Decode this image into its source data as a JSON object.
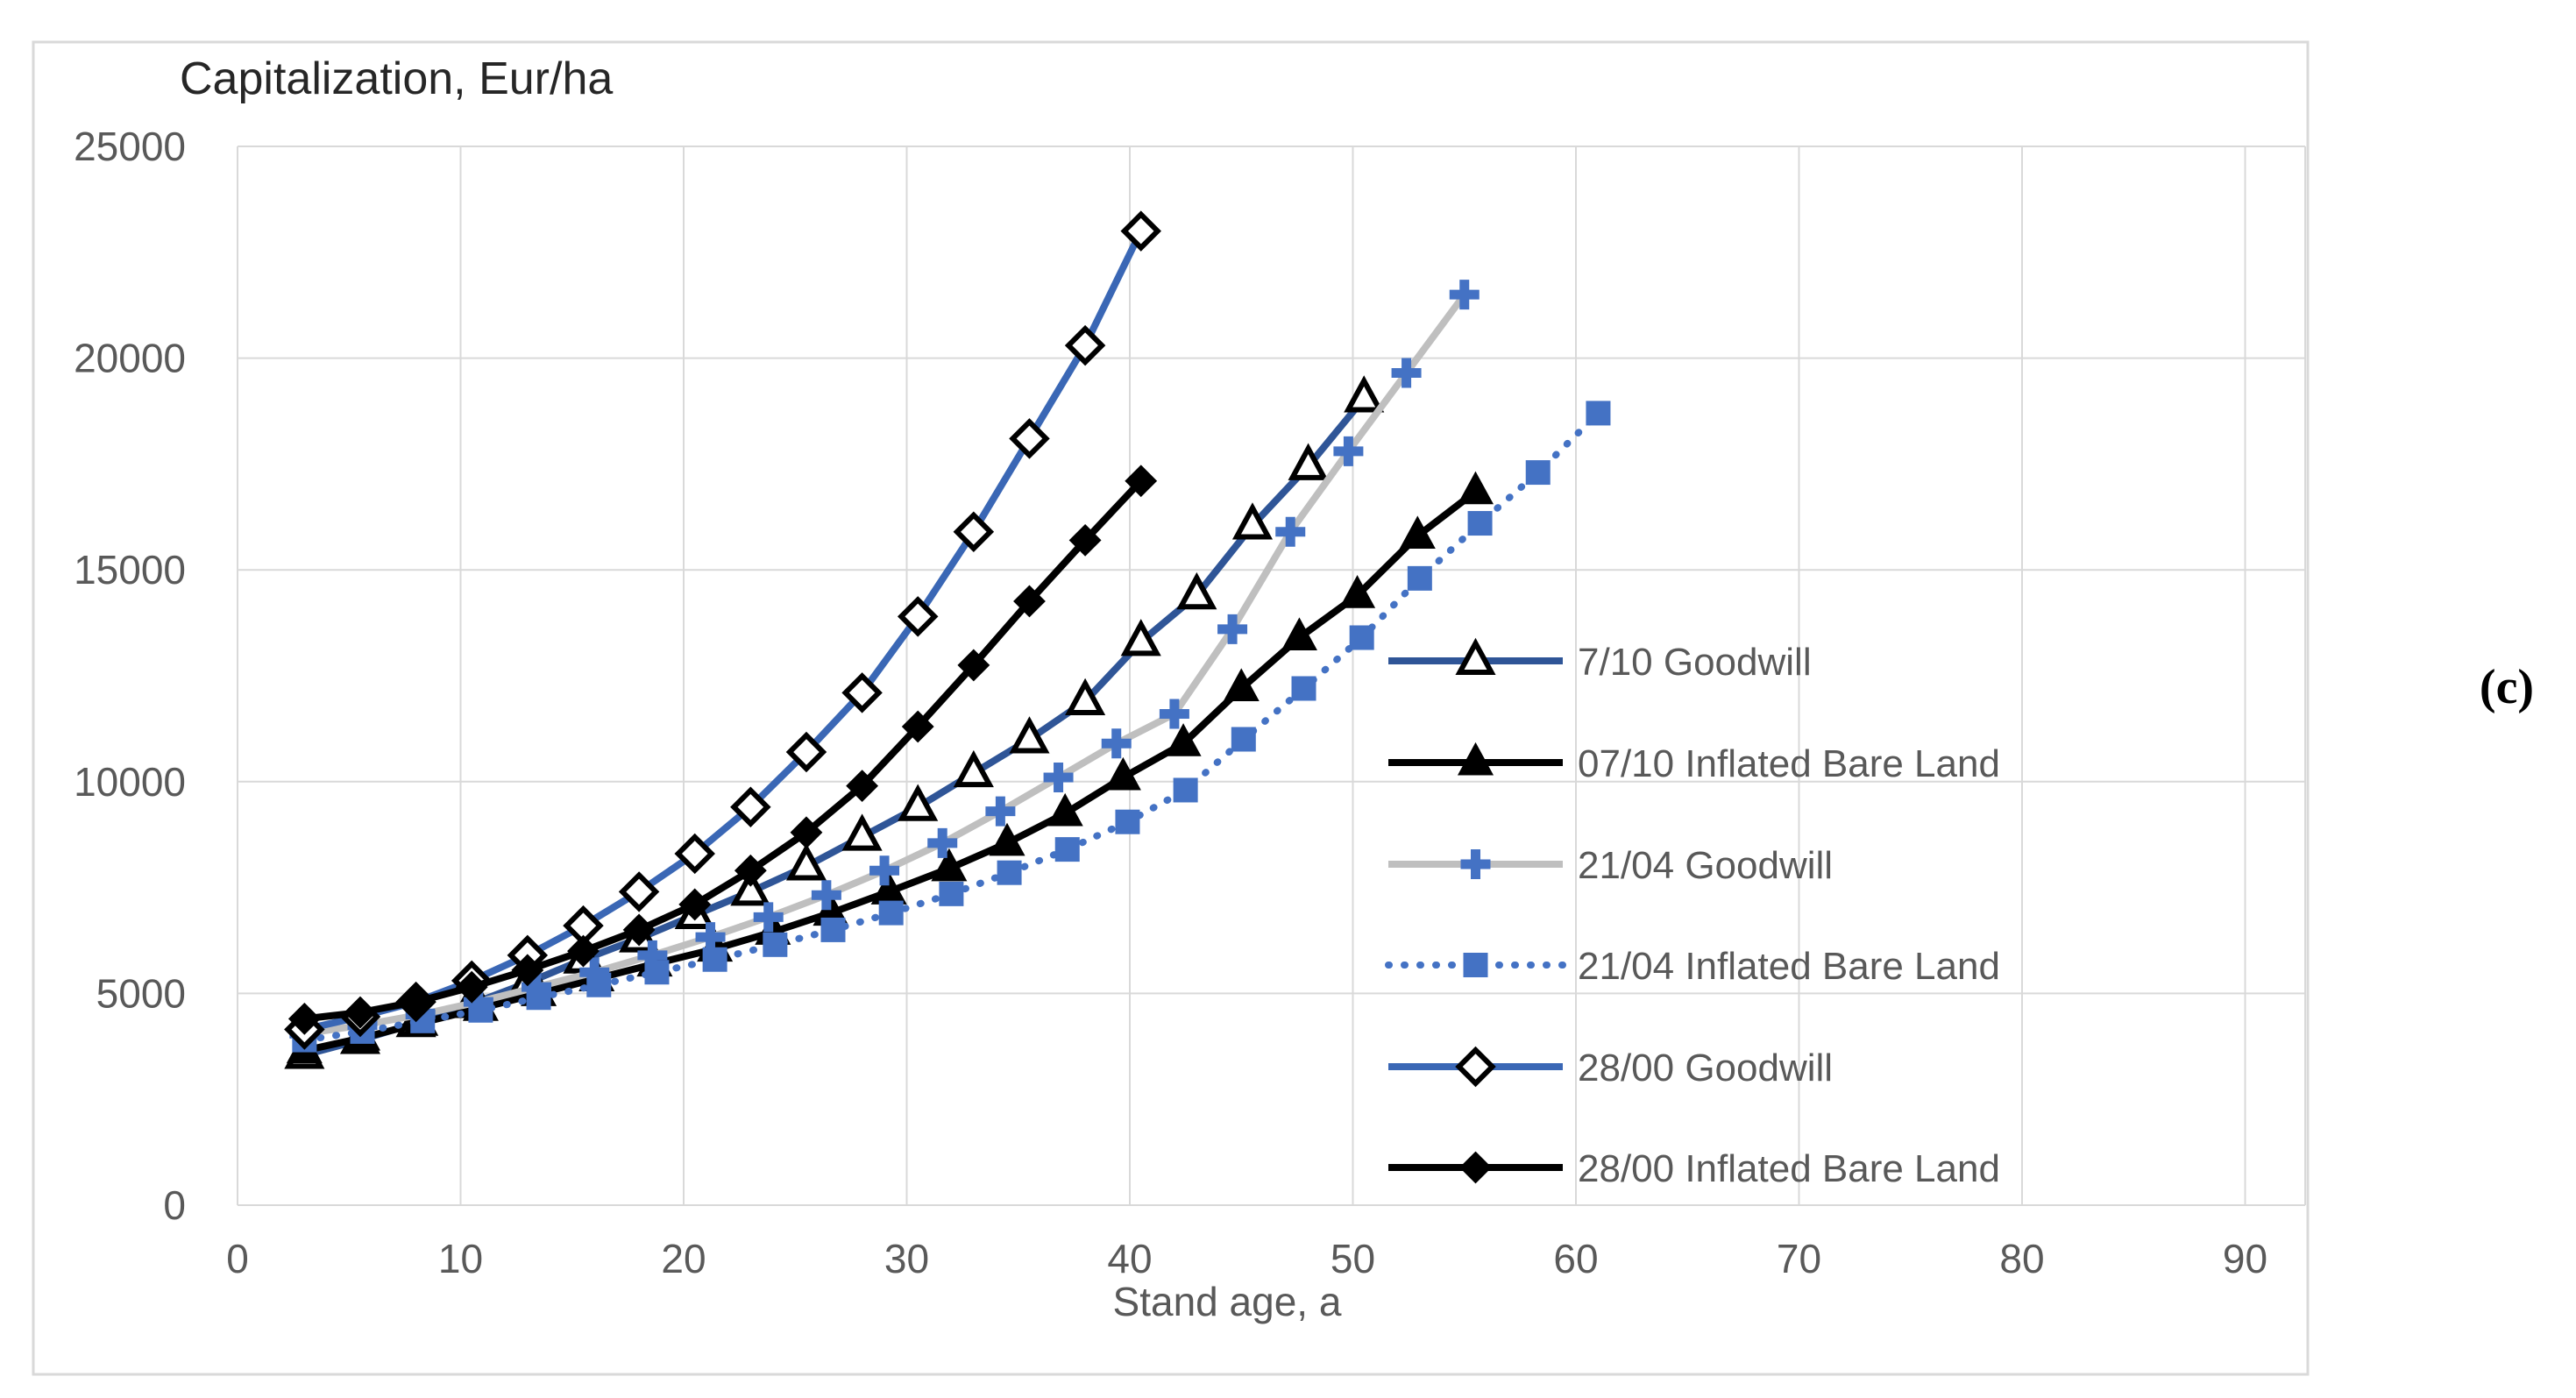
{
  "figure": {
    "panel_label": "(c)",
    "background": "#ffffff",
    "border_color": "#d9d9d9"
  },
  "chart_data": {
    "type": "line",
    "title": "Capitalization, Eur/ha",
    "xlabel": "Stand age, a",
    "ylabel": "Capitalization, Eur/ha",
    "xlim": [
      0,
      92.8
    ],
    "ylim": [
      0,
      25000
    ],
    "x_ticks": [
      0,
      10,
      20,
      30,
      40,
      50,
      60,
      70,
      80,
      90
    ],
    "y_ticks": [
      0,
      5000,
      10000,
      15000,
      20000,
      25000
    ],
    "grid": true,
    "gridline_color": "#d9d9d9",
    "tick_label_color": "#595959",
    "legend_position": "inside-right",
    "legend_text_color": "#595959",
    "series": [
      {
        "name": "7/10 Goodwill",
        "line_color": "#2f5597",
        "line_style": "solid",
        "marker": "open-triangle",
        "marker_color": "#000000",
        "points": [
          [
            3,
            3550
          ],
          [
            5.5,
            3900
          ],
          [
            8,
            4300
          ],
          [
            10.5,
            4750
          ],
          [
            13,
            5250
          ],
          [
            15.5,
            5800
          ],
          [
            18,
            6300
          ],
          [
            20.5,
            6850
          ],
          [
            23,
            7400
          ],
          [
            25.5,
            8000
          ],
          [
            28,
            8700
          ],
          [
            30.5,
            9400
          ],
          [
            33,
            10200
          ],
          [
            35.5,
            11000
          ],
          [
            38,
            11900
          ],
          [
            40.5,
            13300
          ],
          [
            43,
            14400
          ],
          [
            45.5,
            16050
          ],
          [
            48,
            17450
          ],
          [
            50.5,
            19050
          ]
        ]
      },
      {
        "name": "07/10 Inflated Bare Land",
        "line_color": "#000000",
        "line_style": "solid",
        "marker": "filled-triangle",
        "marker_color": "#000000",
        "points": [
          [
            3,
            3650
          ],
          [
            5.6,
            3950
          ],
          [
            8.2,
            4300
          ],
          [
            10.9,
            4650
          ],
          [
            13.5,
            5000
          ],
          [
            16.1,
            5350
          ],
          [
            18.7,
            5700
          ],
          [
            21.4,
            6050
          ],
          [
            24,
            6450
          ],
          [
            26.6,
            6900
          ],
          [
            29.2,
            7400
          ],
          [
            31.9,
            7950
          ],
          [
            34.5,
            8550
          ],
          [
            37.1,
            9250
          ],
          [
            39.7,
            10100
          ],
          [
            42.4,
            10900
          ],
          [
            45,
            12200
          ],
          [
            47.6,
            13400
          ],
          [
            50.2,
            14400
          ],
          [
            52.9,
            15800
          ],
          [
            55.5,
            16850
          ]
        ]
      },
      {
        "name": "21/04 Goodwill",
        "line_color": "#bfbfbf",
        "line_style": "solid",
        "marker": "plus",
        "marker_color": "#4472c4",
        "points": [
          [
            3,
            4050
          ],
          [
            5.6,
            4250
          ],
          [
            8.2,
            4500
          ],
          [
            10.8,
            4800
          ],
          [
            13.4,
            5150
          ],
          [
            16,
            5500
          ],
          [
            18.6,
            5900
          ],
          [
            21.2,
            6330
          ],
          [
            23.8,
            6800
          ],
          [
            26.4,
            7320
          ],
          [
            29,
            7900
          ],
          [
            31.6,
            8550
          ],
          [
            34.2,
            9300
          ],
          [
            36.8,
            10100
          ],
          [
            39.4,
            10900
          ],
          [
            42,
            11600
          ],
          [
            44.6,
            13600
          ],
          [
            47.2,
            15900
          ],
          [
            49.8,
            17800
          ],
          [
            52.4,
            19650
          ],
          [
            55,
            21500
          ]
        ]
      },
      {
        "name": "21/04 Inflated Bare Land",
        "line_color": "#4472c4",
        "line_style": "dotted",
        "marker": "filled-square",
        "marker_color": "#4472c4",
        "points": [
          [
            3,
            3900
          ],
          [
            5.6,
            4100
          ],
          [
            8.3,
            4350
          ],
          [
            10.9,
            4600
          ],
          [
            13.5,
            4900
          ],
          [
            16.2,
            5200
          ],
          [
            18.8,
            5500
          ],
          [
            21.4,
            5800
          ],
          [
            24.1,
            6150
          ],
          [
            26.7,
            6500
          ],
          [
            29.3,
            6900
          ],
          [
            32,
            7350
          ],
          [
            34.6,
            7850
          ],
          [
            37.2,
            8400
          ],
          [
            39.9,
            9050
          ],
          [
            42.5,
            9800
          ],
          [
            45.1,
            11000
          ],
          [
            47.8,
            12200
          ],
          [
            50.4,
            13400
          ],
          [
            53,
            14800
          ],
          [
            55.7,
            16100
          ],
          [
            58.3,
            17300
          ],
          [
            61,
            18700
          ]
        ]
      },
      {
        "name": "28/00 Goodwill",
        "line_color": "#3a67b5",
        "line_style": "solid",
        "marker": "open-diamond",
        "marker_color": "#000000",
        "points": [
          [
            3,
            4150
          ],
          [
            5.5,
            4450
          ],
          [
            8,
            4800
          ],
          [
            10.5,
            5300
          ],
          [
            13,
            5900
          ],
          [
            15.5,
            6600
          ],
          [
            18,
            7400
          ],
          [
            20.5,
            8300
          ],
          [
            23,
            9400
          ],
          [
            25.5,
            10700
          ],
          [
            28,
            12100
          ],
          [
            30.5,
            13900
          ],
          [
            33,
            15900
          ],
          [
            35.5,
            18100
          ],
          [
            38,
            20300
          ],
          [
            40.5,
            23000
          ]
        ]
      },
      {
        "name": "28/00 Inflated Bare Land",
        "line_color": "#000000",
        "line_style": "solid",
        "marker": "filled-diamond",
        "marker_color": "#000000",
        "points": [
          [
            3,
            4400
          ],
          [
            5.5,
            4550
          ],
          [
            8,
            4800
          ],
          [
            10.5,
            5150
          ],
          [
            13,
            5550
          ],
          [
            15.5,
            6000
          ],
          [
            18,
            6500
          ],
          [
            20.5,
            7100
          ],
          [
            23,
            7900
          ],
          [
            25.5,
            8800
          ],
          [
            28,
            9900
          ],
          [
            30.5,
            11300
          ],
          [
            33,
            12750
          ],
          [
            35.5,
            14260
          ],
          [
            38,
            15700
          ],
          [
            40.5,
            17100
          ]
        ]
      }
    ]
  }
}
